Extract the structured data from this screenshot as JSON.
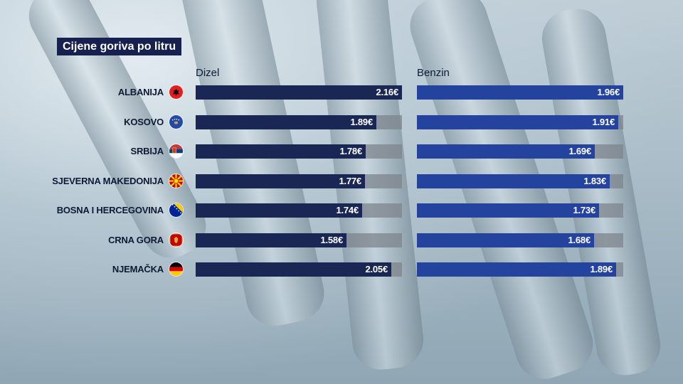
{
  "title": "Cijene goriva po litru",
  "chart_data": {
    "type": "bar",
    "orientation": "horizontal",
    "title": "Cijene goriva po litru",
    "categories": [
      "ALBANIJA",
      "KOSOVO",
      "SRBIJA",
      "SJEVERNA MAKEDONIJA",
      "BOSNA I HERCEGOVINA",
      "CRNA GORA",
      "NJEMAČKA"
    ],
    "series": [
      {
        "name": "Dizel",
        "values": [
          2.16,
          1.89,
          1.78,
          1.77,
          1.74,
          1.58,
          2.05
        ],
        "labels": [
          "2.16€",
          "1.89€",
          "1.78€",
          "1.77€",
          "1.74€",
          "1.58€",
          "2.05€"
        ],
        "color": "#1a2754"
      },
      {
        "name": "Benzin",
        "values": [
          1.96,
          1.91,
          1.69,
          1.83,
          1.73,
          1.68,
          1.89
        ],
        "labels": [
          "1.96€",
          "1.91€",
          "1.69€",
          "1.83€",
          "1.73€",
          "1.68€",
          "1.89€"
        ],
        "color": "#24439e"
      }
    ],
    "flags": [
      "flag-albania-icon",
      "flag-kosovo-icon",
      "flag-serbia-icon",
      "flag-north-macedonia-icon",
      "flag-bosnia-icon",
      "flag-montenegro-icon",
      "flag-germany-icon"
    ],
    "track_max": {
      "Dizel": 2.16,
      "Benzin": 1.96
    },
    "track_color": "#7d848c",
    "grid": false,
    "legend": "column headers"
  }
}
